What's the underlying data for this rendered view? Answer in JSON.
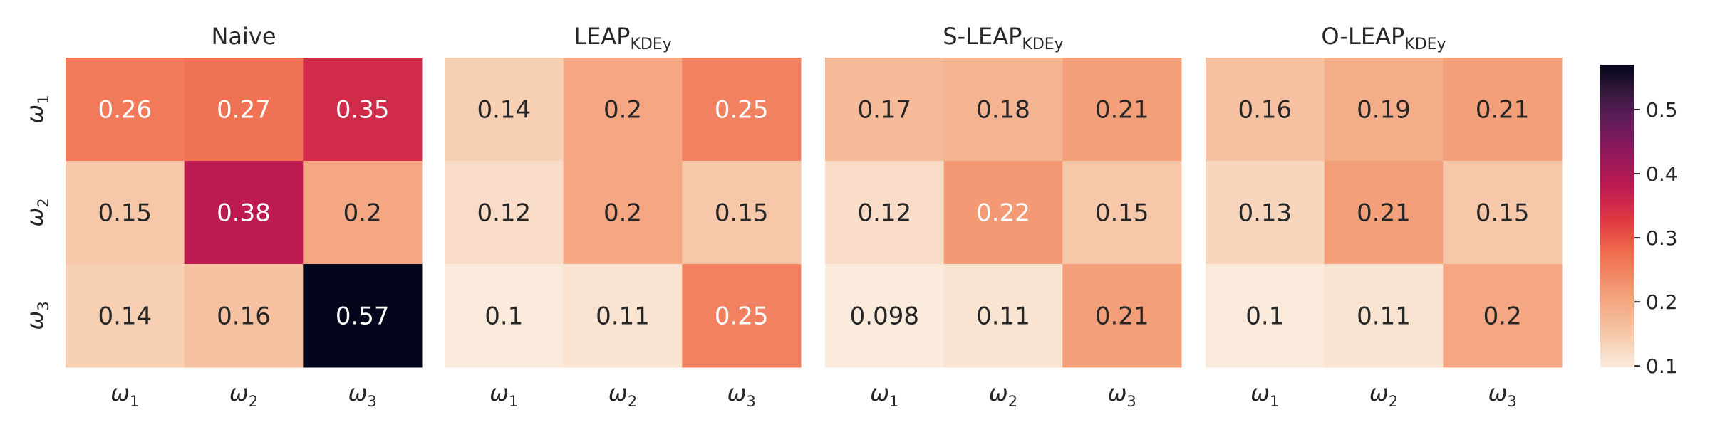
{
  "chart_data": {
    "type": "heatmap",
    "row_labels": [
      "ω1",
      "ω2",
      "ω3"
    ],
    "col_labels": [
      "ω1",
      "ω2",
      "ω3"
    ],
    "label_symbol": "ω",
    "label_indices": [
      "1",
      "2",
      "3"
    ],
    "panels": [
      {
        "title": "Naive",
        "title_base": "Naive",
        "title_sub": "",
        "values": [
          [
            0.26,
            0.27,
            0.35
          ],
          [
            0.15,
            0.38,
            0.2
          ],
          [
            0.14,
            0.16,
            0.57
          ]
        ]
      },
      {
        "title": "LEAPKDEy",
        "title_base": "LEAP",
        "title_sub": "KDEy",
        "values": [
          [
            0.14,
            0.2,
            0.25
          ],
          [
            0.12,
            0.2,
            0.15
          ],
          [
            0.1,
            0.11,
            0.25
          ]
        ]
      },
      {
        "title": "S-LEAPKDEy",
        "title_base": "S-LEAP",
        "title_sub": "KDEy",
        "values": [
          [
            0.17,
            0.18,
            0.21
          ],
          [
            0.12,
            0.22,
            0.15
          ],
          [
            0.098,
            0.11,
            0.21
          ]
        ]
      },
      {
        "title": "O-LEAPKDEy",
        "title_base": "O-LEAP",
        "title_sub": "KDEy",
        "values": [
          [
            0.16,
            0.19,
            0.21
          ],
          [
            0.13,
            0.21,
            0.15
          ],
          [
            0.1,
            0.11,
            0.2
          ]
        ]
      }
    ],
    "colorbar": {
      "min": 0.098,
      "max": 0.57,
      "ticks": [
        0.1,
        0.2,
        0.3,
        0.4,
        0.5
      ],
      "tick_labels": [
        "0.1",
        "0.2",
        "0.3",
        "0.4",
        "0.5"
      ],
      "colormap": "rocket_r"
    },
    "colors": {
      "low": "#faebdd",
      "high": "#03051a",
      "text_dark": "#262626",
      "text_light": "#ffffff"
    }
  }
}
